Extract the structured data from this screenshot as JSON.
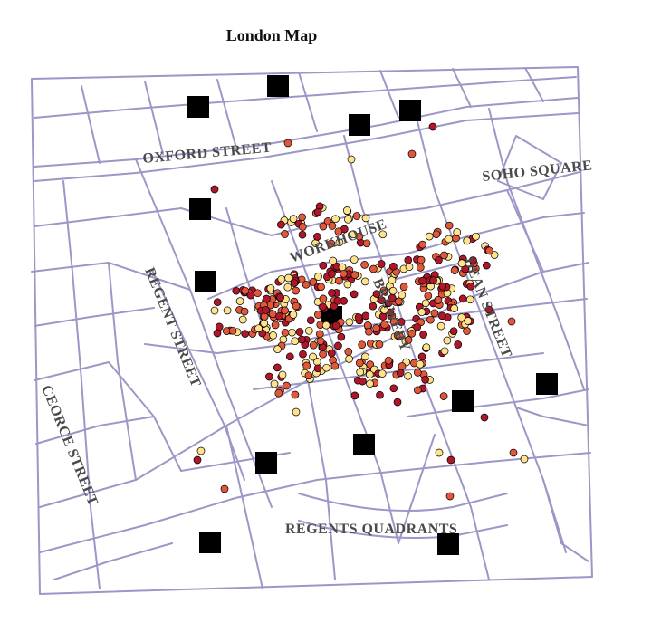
{
  "title": "London Map",
  "colors": {
    "street": "#9c97c6",
    "pump": "#000000",
    "death_dark": "#b0162a",
    "death_mid": "#e0573a",
    "death_light": "#ffe28a",
    "label": "#4a4a4a"
  },
  "labels": {
    "oxford": "OXFORD STREET",
    "soho": "SOHO SQUARE",
    "workhouse": "WORKHOUSE",
    "brewery": "BREWERY",
    "dean": "DEAN STREET",
    "regent": "REGENT STREET",
    "george": "CEORCE STREET",
    "quadrants": "REGENTS QUADRANTS"
  }
}
